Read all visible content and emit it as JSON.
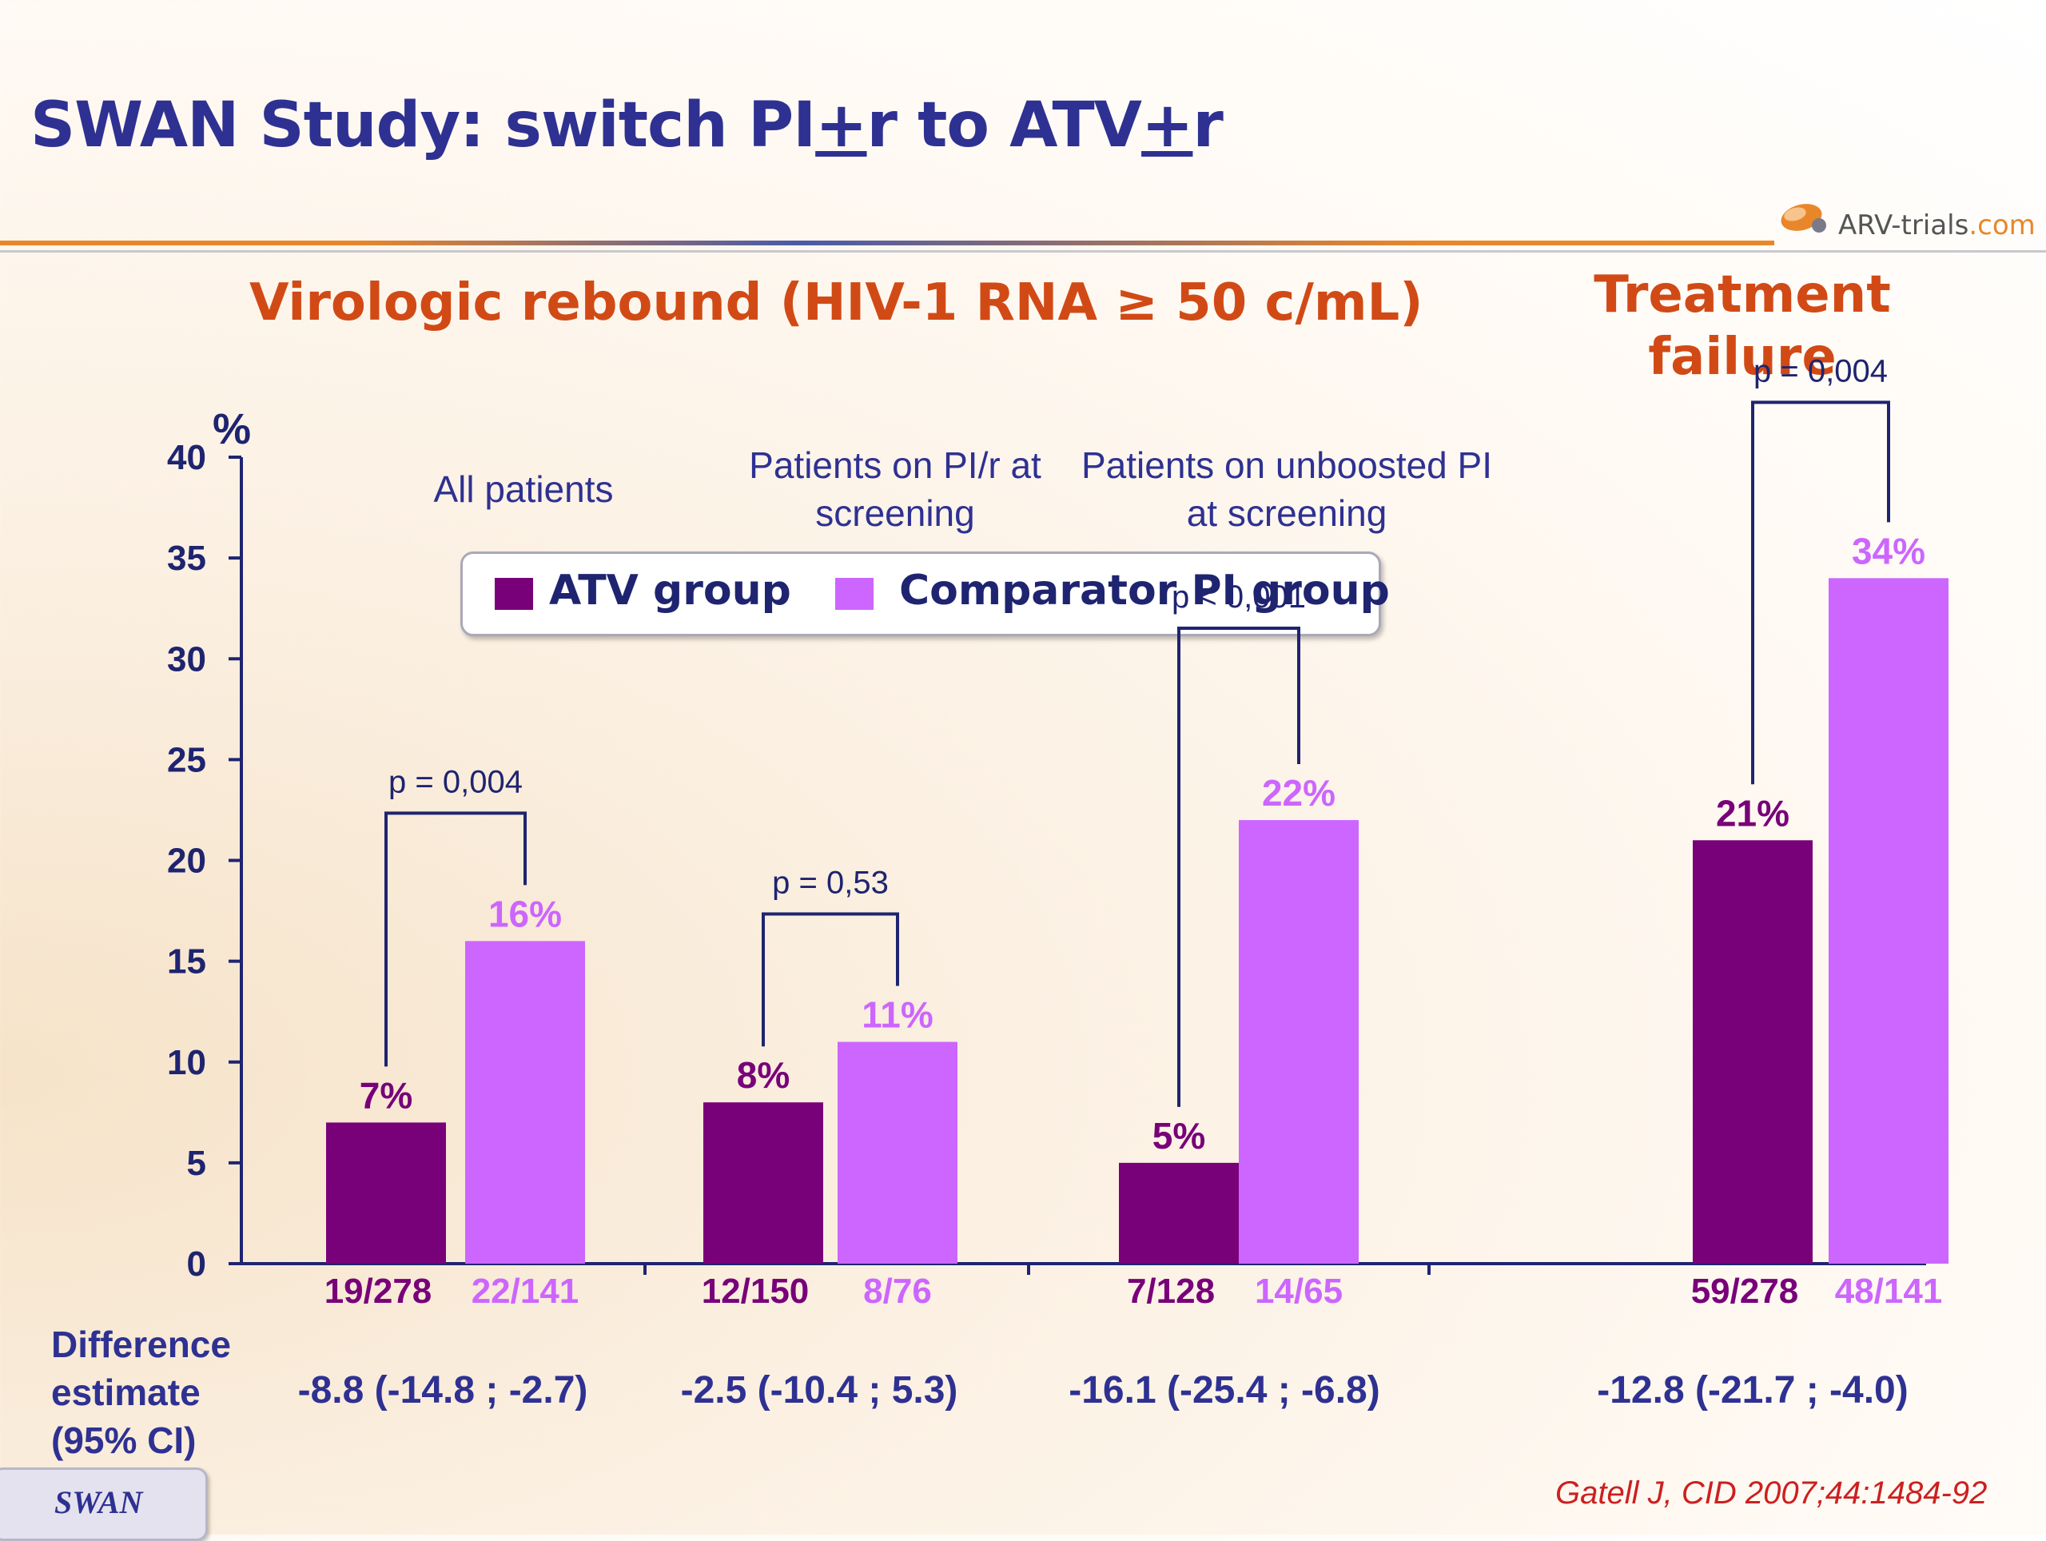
{
  "slide": {
    "title_part1": "SWAN Study: switch PI",
    "title_plus1": "+",
    "title_part2": "r to ATV",
    "title_plus2": "+",
    "title_part3": "r",
    "logo_text_a": "ARV-trials",
    "logo_text_b": ".com",
    "section_title_left": "Virologic rebound (HIV-1 RNA ≥ 50 c/mL)",
    "section_title_right": "Treatment failure",
    "group_labels": [
      "All patients",
      "Patients on PI/r at screening",
      "Patients on unboosted PI at screening"
    ],
    "legend": {
      "atv": "ATV group",
      "comparator": "Comparator PI group"
    },
    "difference_label": "Difference estimate (95% CI)",
    "difference_values": [
      "-8.8 (-14.8 ; -2.7)",
      "-2.5 (-10.4 ; 5.3)",
      "-16.1 (-25.4 ; -6.8)",
      "-12.8 (-21.7 ; -4.0)"
    ],
    "footer": "SWAN",
    "citation": "Gatell J, CID 2007;44:1484-92"
  },
  "colors": {
    "atv": "#780079",
    "comparator": "#cc66ff",
    "title": "#2e3192",
    "accent": "#d14a16",
    "citation": "#cc2020"
  },
  "chart_data": {
    "type": "bar",
    "ylabel": "%",
    "ylim": [
      0,
      40
    ],
    "yticks": [
      0,
      5,
      10,
      15,
      20,
      25,
      30,
      35,
      40
    ],
    "grid": false,
    "legend_position": "top-center",
    "categories": [
      "All patients",
      "Patients on PI/r at screening",
      "Patients on unboosted PI at screening",
      "Treatment failure"
    ],
    "series": [
      {
        "name": "ATV group",
        "values": [
          7,
          8,
          5,
          21
        ],
        "labels": [
          "7%",
          "8%",
          "5%",
          "21%"
        ],
        "counts": [
          "19/278",
          "12/150",
          "7/128",
          "59/278"
        ]
      },
      {
        "name": "Comparator PI group",
        "values": [
          16,
          11,
          22,
          34
        ],
        "labels": [
          "16%",
          "11%",
          "22%",
          "34%"
        ],
        "counts": [
          "22/141",
          "8/76",
          "14/65",
          "48/141"
        ]
      }
    ],
    "pvalues": [
      "p = 0,004",
      "p = 0,53",
      "p < 0,001",
      "p = 0,004"
    ]
  }
}
